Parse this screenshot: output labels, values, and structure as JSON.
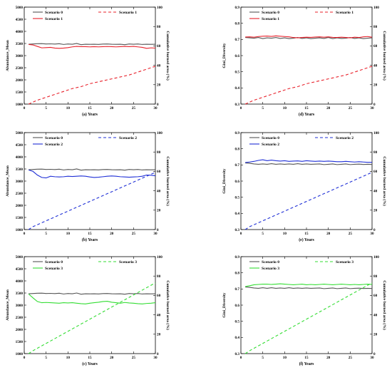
{
  "chart_data": [
    {
      "id": "a",
      "type": "line",
      "caption": "(a) Years",
      "ylabel": "Abundance_Mean",
      "y2label": "Cumulative burned area (%)",
      "xlim": [
        0,
        30
      ],
      "ylim": [
        1000,
        5000
      ],
      "y2lim": [
        0,
        100
      ],
      "xticks": [
        0,
        5,
        10,
        15,
        20,
        25,
        30
      ],
      "yticks": [
        1000,
        1500,
        2000,
        2500,
        3000,
        3500,
        4000,
        4500,
        5000
      ],
      "y2ticks": [
        0,
        20,
        40,
        60,
        80,
        100
      ],
      "x": [
        1,
        2,
        3,
        4,
        5,
        6,
        7,
        8,
        9,
        10,
        11,
        12,
        13,
        14,
        15,
        16,
        17,
        18,
        19,
        20,
        21,
        22,
        23,
        24,
        25,
        26,
        27,
        28,
        29,
        30
      ],
      "series": [
        {
          "name": "Scenario 0",
          "axis": "left",
          "color": "#555555",
          "dash": false,
          "values": [
            3470,
            3480,
            3490,
            3495,
            3480,
            3485,
            3475,
            3490,
            3460,
            3480,
            3470,
            3500,
            3450,
            3470,
            3465,
            3470,
            3460,
            3475,
            3480,
            3470,
            3465,
            3470,
            3450,
            3480,
            3470,
            3480,
            3460,
            3470,
            3465,
            3470
          ]
        },
        {
          "name": "Scenario 1",
          "axis": "left",
          "color": "#e8202a",
          "dash": false,
          "values": [
            3460,
            3440,
            3380,
            3320,
            3330,
            3340,
            3310,
            3300,
            3310,
            3330,
            3360,
            3380,
            3370,
            3370,
            3360,
            3370,
            3360,
            3370,
            3375,
            3370,
            3360,
            3370,
            3380,
            3370,
            3380,
            3360,
            3340,
            3300,
            3320,
            3310
          ]
        },
        {
          "name": "Scenario 1",
          "axis": "right",
          "color": "#e8202a",
          "dash": true,
          "values": [
            0,
            2,
            4,
            5.5,
            7,
            8.5,
            10,
            11.5,
            13,
            14.5,
            16,
            17,
            18,
            19.5,
            21,
            22,
            23,
            24,
            25,
            26,
            27,
            28,
            29,
            30,
            31.5,
            33,
            34.5,
            36,
            37.5,
            39
          ]
        }
      ]
    },
    {
      "id": "d",
      "type": "line",
      "caption": "(d) Years",
      "ylabel": "Gini_Diversity",
      "y2label": "Cumulative burned area (%)",
      "xlim": [
        0,
        30
      ],
      "ylim": [
        0.3,
        0.9
      ],
      "y2lim": [
        0,
        100
      ],
      "xticks": [
        0,
        5,
        10,
        15,
        20,
        25,
        30
      ],
      "yticks": [
        0.3,
        0.4,
        0.5,
        0.6,
        0.7,
        0.8,
        0.9
      ],
      "y2ticks": [
        0,
        20,
        40,
        60,
        80,
        100
      ],
      "x": [
        1,
        2,
        3,
        4,
        5,
        6,
        7,
        8,
        9,
        10,
        11,
        12,
        13,
        14,
        15,
        16,
        17,
        18,
        19,
        20,
        21,
        22,
        23,
        24,
        25,
        26,
        27,
        28,
        29,
        30
      ],
      "series": [
        {
          "name": "Scenario 0",
          "axis": "left",
          "color": "#555555",
          "dash": false,
          "values": [
            0.712,
            0.71,
            0.708,
            0.712,
            0.705,
            0.71,
            0.708,
            0.712,
            0.706,
            0.71,
            0.705,
            0.708,
            0.712,
            0.706,
            0.71,
            0.705,
            0.708,
            0.71,
            0.706,
            0.712,
            0.705,
            0.71,
            0.706,
            0.708,
            0.712,
            0.706,
            0.71,
            0.705,
            0.708,
            0.71
          ]
        },
        {
          "name": "Scenario 1",
          "axis": "left",
          "color": "#e8202a",
          "dash": false,
          "values": [
            0.715,
            0.716,
            0.714,
            0.718,
            0.72,
            0.721,
            0.719,
            0.722,
            0.72,
            0.718,
            0.716,
            0.712,
            0.71,
            0.712,
            0.714,
            0.713,
            0.715,
            0.716,
            0.714,
            0.716,
            0.713,
            0.712,
            0.714,
            0.712,
            0.71,
            0.714,
            0.712,
            0.716,
            0.718,
            0.714
          ]
        },
        {
          "name": "Scenario 1",
          "axis": "right",
          "color": "#e8202a",
          "dash": true,
          "values": [
            0,
            2,
            4,
            5.5,
            7,
            8.5,
            10,
            11.5,
            13,
            14.5,
            16,
            17,
            18,
            19.5,
            21,
            22,
            23,
            24,
            25,
            26,
            27,
            28,
            29,
            30,
            31.5,
            33,
            34.5,
            36,
            37.5,
            39
          ]
        }
      ]
    },
    {
      "id": "b",
      "type": "line",
      "caption": "(b) Years",
      "ylabel": "Abundance_Mean",
      "y2label": "Cumulative burned area (%)",
      "xlim": [
        0,
        30
      ],
      "ylim": [
        1000,
        5000
      ],
      "y2lim": [
        0,
        100
      ],
      "xticks": [
        0,
        5,
        10,
        15,
        20,
        25,
        30
      ],
      "yticks": [
        1000,
        1500,
        2000,
        2500,
        3000,
        3500,
        4000,
        4500,
        5000
      ],
      "y2ticks": [
        0,
        20,
        40,
        60,
        80,
        100
      ],
      "x": [
        1,
        2,
        3,
        4,
        5,
        6,
        7,
        8,
        9,
        10,
        11,
        12,
        13,
        14,
        15,
        16,
        17,
        18,
        19,
        20,
        21,
        22,
        23,
        24,
        25,
        26,
        27,
        28,
        29,
        30
      ],
      "series": [
        {
          "name": "Scenario 0",
          "axis": "left",
          "color": "#555555",
          "dash": false,
          "values": [
            3470,
            3480,
            3490,
            3495,
            3480,
            3485,
            3475,
            3490,
            3460,
            3480,
            3470,
            3500,
            3450,
            3470,
            3465,
            3470,
            3460,
            3475,
            3480,
            3470,
            3465,
            3470,
            3450,
            3480,
            3470,
            3480,
            3460,
            3470,
            3465,
            3470
          ]
        },
        {
          "name": "Scenario 2",
          "axis": "left",
          "color": "#1f2fd6",
          "dash": false,
          "values": [
            3460,
            3400,
            3250,
            3150,
            3130,
            3200,
            3180,
            3170,
            3180,
            3200,
            3190,
            3200,
            3210,
            3200,
            3170,
            3150,
            3160,
            3180,
            3200,
            3210,
            3200,
            3180,
            3170,
            3160,
            3170,
            3180,
            3200,
            3250,
            3240,
            3220
          ]
        },
        {
          "name": "Scenario 2",
          "axis": "right",
          "color": "#1f2fd6",
          "dash": true,
          "values": [
            0,
            3,
            5,
            7,
            9,
            11,
            13,
            15,
            17,
            19,
            21,
            23,
            25,
            27,
            29,
            31,
            33,
            35,
            37,
            39,
            41,
            43,
            45,
            47,
            49,
            51,
            53,
            55,
            57,
            59
          ]
        }
      ]
    },
    {
      "id": "e",
      "type": "line",
      "caption": "(e) Years",
      "ylabel": "Gini_Diversity",
      "y2label": "Cumulative burned area (%)",
      "xlim": [
        0,
        30
      ],
      "ylim": [
        0.3,
        0.9
      ],
      "y2lim": [
        0,
        100
      ],
      "xticks": [
        0,
        5,
        10,
        15,
        20,
        25,
        30
      ],
      "yticks": [
        0.3,
        0.4,
        0.5,
        0.6,
        0.7,
        0.8,
        0.9
      ],
      "y2ticks": [
        0,
        20,
        40,
        60,
        80,
        100
      ],
      "x": [
        1,
        2,
        3,
        4,
        5,
        6,
        7,
        8,
        9,
        10,
        11,
        12,
        13,
        14,
        15,
        16,
        17,
        18,
        19,
        20,
        21,
        22,
        23,
        24,
        25,
        26,
        27,
        28,
        29,
        30
      ],
      "series": [
        {
          "name": "Scenario 0",
          "axis": "left",
          "color": "#555555",
          "dash": false,
          "values": [
            0.712,
            0.71,
            0.706,
            0.704,
            0.706,
            0.704,
            0.708,
            0.704,
            0.706,
            0.704,
            0.706,
            0.704,
            0.708,
            0.704,
            0.706,
            0.704,
            0.705,
            0.706,
            0.702,
            0.704,
            0.706,
            0.702,
            0.704,
            0.706,
            0.702,
            0.704,
            0.705,
            0.703,
            0.704,
            0.703
          ]
        },
        {
          "name": "Scenario 2",
          "axis": "left",
          "color": "#1f2fd6",
          "dash": false,
          "values": [
            0.715,
            0.718,
            0.722,
            0.728,
            0.732,
            0.726,
            0.73,
            0.726,
            0.724,
            0.726,
            0.722,
            0.724,
            0.725,
            0.722,
            0.726,
            0.724,
            0.722,
            0.724,
            0.722,
            0.724,
            0.722,
            0.72,
            0.72,
            0.722,
            0.72,
            0.718,
            0.72,
            0.718,
            0.716,
            0.716
          ]
        },
        {
          "name": "Scenario 2",
          "axis": "right",
          "color": "#1f2fd6",
          "dash": true,
          "values": [
            0,
            3,
            5,
            7,
            9,
            11,
            13,
            15,
            17,
            19,
            21,
            23,
            25,
            27,
            29,
            31,
            33,
            35,
            37,
            39,
            41,
            43,
            45,
            47,
            49,
            51,
            53,
            55,
            57,
            59
          ]
        }
      ]
    },
    {
      "id": "c",
      "type": "line",
      "caption": "(c) Years",
      "ylabel": "Abundance_Mean",
      "y2label": "Cumulative burned area (%)",
      "xlim": [
        0,
        30
      ],
      "ylim": [
        1000,
        5000
      ],
      "y2lim": [
        0,
        100
      ],
      "xticks": [
        0,
        5,
        10,
        15,
        20,
        25,
        30
      ],
      "yticks": [
        1000,
        1500,
        2000,
        2500,
        3000,
        3500,
        4000,
        4500,
        5000
      ],
      "y2ticks": [
        0,
        20,
        40,
        60,
        80,
        100
      ],
      "x": [
        1,
        2,
        3,
        4,
        5,
        6,
        7,
        8,
        9,
        10,
        11,
        12,
        13,
        14,
        15,
        16,
        17,
        18,
        19,
        20,
        21,
        22,
        23,
        24,
        25,
        26,
        27,
        28,
        29,
        30
      ],
      "series": [
        {
          "name": "Scenario 0",
          "axis": "left",
          "color": "#555555",
          "dash": false,
          "values": [
            3470,
            3480,
            3490,
            3495,
            3480,
            3485,
            3475,
            3490,
            3460,
            3480,
            3470,
            3500,
            3450,
            3470,
            3465,
            3470,
            3460,
            3475,
            3480,
            3470,
            3465,
            3470,
            3450,
            3480,
            3470,
            3480,
            3460,
            3470,
            3465,
            3470
          ]
        },
        {
          "name": "Scenario 3",
          "axis": "left",
          "color": "#33dd33",
          "dash": false,
          "values": [
            3460,
            3300,
            3150,
            3100,
            3110,
            3100,
            3090,
            3080,
            3100,
            3090,
            3100,
            3080,
            3060,
            3050,
            3080,
            3100,
            3120,
            3150,
            3160,
            3120,
            3100,
            3080,
            3110,
            3090,
            3080,
            3060,
            3050,
            3070,
            3080,
            3100
          ]
        },
        {
          "name": "Scenario 3",
          "axis": "right",
          "color": "#33dd33",
          "dash": true,
          "values": [
            0,
            3,
            5.5,
            8,
            10.5,
            13,
            15.5,
            18,
            20.5,
            23,
            25.5,
            28,
            30.5,
            33,
            35.5,
            38,
            40.5,
            43,
            45.5,
            48,
            50.5,
            53,
            55.5,
            58,
            60.5,
            63,
            65.5,
            68,
            70.5,
            73
          ]
        }
      ]
    },
    {
      "id": "f",
      "type": "line",
      "caption": "(f) Years",
      "ylabel": "Gini_Diversity",
      "y2label": "Cumulative burned area (%)",
      "xlim": [
        0,
        30
      ],
      "ylim": [
        0.3,
        0.9
      ],
      "y2lim": [
        0,
        100
      ],
      "xticks": [
        0,
        5,
        10,
        15,
        20,
        25,
        30
      ],
      "yticks": [
        0.3,
        0.4,
        0.5,
        0.6,
        0.7,
        0.8,
        0.9
      ],
      "y2ticks": [
        0,
        20,
        40,
        60,
        80,
        100
      ],
      "x": [
        1,
        2,
        3,
        4,
        5,
        6,
        7,
        8,
        9,
        10,
        11,
        12,
        13,
        14,
        15,
        16,
        17,
        18,
        19,
        20,
        21,
        22,
        23,
        24,
        25,
        26,
        27,
        28,
        29,
        30
      ],
      "series": [
        {
          "name": "Scenario 0",
          "axis": "left",
          "color": "#555555",
          "dash": false,
          "values": [
            0.712,
            0.71,
            0.706,
            0.704,
            0.708,
            0.704,
            0.708,
            0.704,
            0.706,
            0.704,
            0.708,
            0.704,
            0.706,
            0.704,
            0.706,
            0.704,
            0.705,
            0.706,
            0.702,
            0.704,
            0.706,
            0.702,
            0.704,
            0.706,
            0.702,
            0.704,
            0.705,
            0.703,
            0.704,
            0.703
          ]
        },
        {
          "name": "Scenario 3",
          "axis": "left",
          "color": "#33dd33",
          "dash": false,
          "values": [
            0.715,
            0.72,
            0.726,
            0.728,
            0.73,
            0.73,
            0.728,
            0.73,
            0.732,
            0.73,
            0.728,
            0.726,
            0.728,
            0.73,
            0.726,
            0.728,
            0.726,
            0.728,
            0.73,
            0.728,
            0.726,
            0.728,
            0.73,
            0.728,
            0.726,
            0.728,
            0.726,
            0.728,
            0.73,
            0.728
          ]
        },
        {
          "name": "Scenario 3",
          "axis": "right",
          "color": "#33dd33",
          "dash": true,
          "values": [
            0,
            3,
            5.5,
            8,
            10.5,
            13,
            15.5,
            18,
            20.5,
            23,
            25.5,
            28,
            30.5,
            33,
            35.5,
            38,
            40.5,
            43,
            45.5,
            48,
            50.5,
            53,
            55.5,
            58,
            60.5,
            63,
            65.5,
            68,
            70.5,
            73
          ]
        }
      ]
    }
  ]
}
